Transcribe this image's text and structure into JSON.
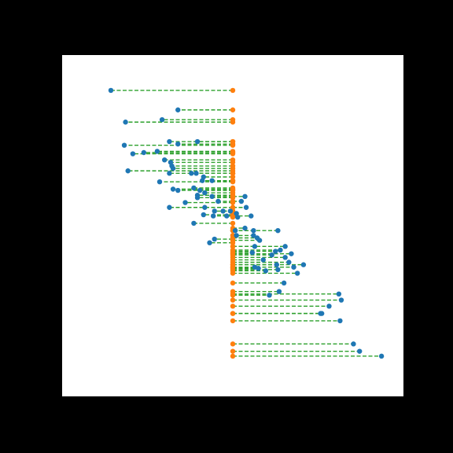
{
  "colors": {
    "background": "#000000",
    "plot_area": "#ffffff",
    "point_color": "#1f77b4",
    "base_color": "#ff7f0e",
    "connector_color": "#2ca02c"
  },
  "chart_data": {
    "type": "scatter",
    "title": "",
    "xlabel": "",
    "ylabel": "",
    "xlim": [
      -1.4,
      1.4
    ],
    "ylim": [
      -1.4,
      1.4
    ],
    "grid": false,
    "legend": "none",
    "axes_visible": false,
    "connector_style": "dashed",
    "base_x": 0.0,
    "points": [
      [
        -1.0,
        -1.11
      ],
      [
        -0.45,
        -0.95
      ],
      [
        -0.88,
        -0.85
      ],
      [
        -0.58,
        -0.87
      ],
      [
        -0.52,
        -0.69
      ],
      [
        -0.29,
        -0.69
      ],
      [
        -0.89,
        -0.66
      ],
      [
        -0.45,
        -0.67
      ],
      [
        -0.62,
        -0.61
      ],
      [
        -0.73,
        -0.6
      ],
      [
        -0.82,
        -0.59
      ],
      [
        -0.56,
        -0.54
      ],
      [
        -0.51,
        -0.52
      ],
      [
        -0.5,
        -0.49
      ],
      [
        -0.49,
        -0.47
      ],
      [
        -0.86,
        -0.45
      ],
      [
        -0.52,
        -0.43
      ],
      [
        -0.34,
        -0.43
      ],
      [
        -0.3,
        -0.43
      ],
      [
        -0.24,
        -0.4
      ],
      [
        -0.6,
        -0.36
      ],
      [
        -0.25,
        -0.37
      ],
      [
        -0.17,
        -0.37
      ],
      [
        -0.49,
        -0.3
      ],
      [
        -0.45,
        -0.29
      ],
      [
        -0.32,
        -0.31
      ],
      [
        -0.27,
        -0.29
      ],
      [
        -0.23,
        -0.27
      ],
      [
        -0.29,
        -0.25
      ],
      [
        -0.29,
        -0.23
      ],
      [
        -0.17,
        -0.24
      ],
      [
        0.1,
        -0.24
      ],
      [
        -0.39,
        -0.19
      ],
      [
        -0.12,
        -0.2
      ],
      [
        0.07,
        -0.2
      ],
      [
        -0.52,
        -0.15
      ],
      [
        -0.23,
        -0.15
      ],
      [
        0.11,
        -0.15
      ],
      [
        -0.15,
        -0.12
      ],
      [
        -0.08,
        -0.12
      ],
      [
        -0.02,
        -0.12
      ],
      [
        0.03,
        -0.1
      ],
      [
        -0.24,
        -0.09
      ],
      [
        -0.16,
        -0.08
      ],
      [
        -0.05,
        -0.08
      ],
      [
        0.04,
        -0.07
      ],
      [
        0.15,
        -0.08
      ],
      [
        -0.32,
        -0.02
      ],
      [
        0.1,
        0.02
      ],
      [
        0.02,
        0.04
      ],
      [
        0.17,
        0.04
      ],
      [
        0.37,
        0.04
      ],
      [
        0.03,
        0.08
      ],
      [
        0.17,
        0.08
      ],
      [
        0.2,
        0.1
      ],
      [
        0.22,
        0.12
      ],
      [
        -0.15,
        0.11
      ],
      [
        -0.19,
        0.14
      ],
      [
        0.43,
        0.17
      ],
      [
        0.18,
        0.17
      ],
      [
        0.39,
        0.2
      ],
      [
        0.16,
        0.22
      ],
      [
        0.35,
        0.21
      ],
      [
        0.48,
        0.23
      ],
      [
        0.32,
        0.24
      ],
      [
        0.43,
        0.26
      ],
      [
        0.46,
        0.3
      ],
      [
        0.25,
        0.28
      ],
      [
        0.36,
        0.32
      ],
      [
        0.58,
        0.32
      ],
      [
        0.18,
        0.34
      ],
      [
        0.21,
        0.35
      ],
      [
        0.5,
        0.34
      ],
      [
        0.37,
        0.36
      ],
      [
        0.27,
        0.37
      ],
      [
        0.53,
        0.39
      ],
      [
        0.42,
        0.47
      ],
      [
        0.38,
        0.54
      ],
      [
        0.3,
        0.57
      ],
      [
        0.87,
        0.56
      ],
      [
        0.89,
        0.61
      ],
      [
        0.79,
        0.66
      ],
      [
        0.72,
        0.72
      ],
      [
        0.73,
        0.72
      ],
      [
        0.88,
        0.78
      ],
      [
        0.99,
        0.97
      ],
      [
        1.04,
        1.03
      ],
      [
        1.22,
        1.07
      ]
    ]
  }
}
